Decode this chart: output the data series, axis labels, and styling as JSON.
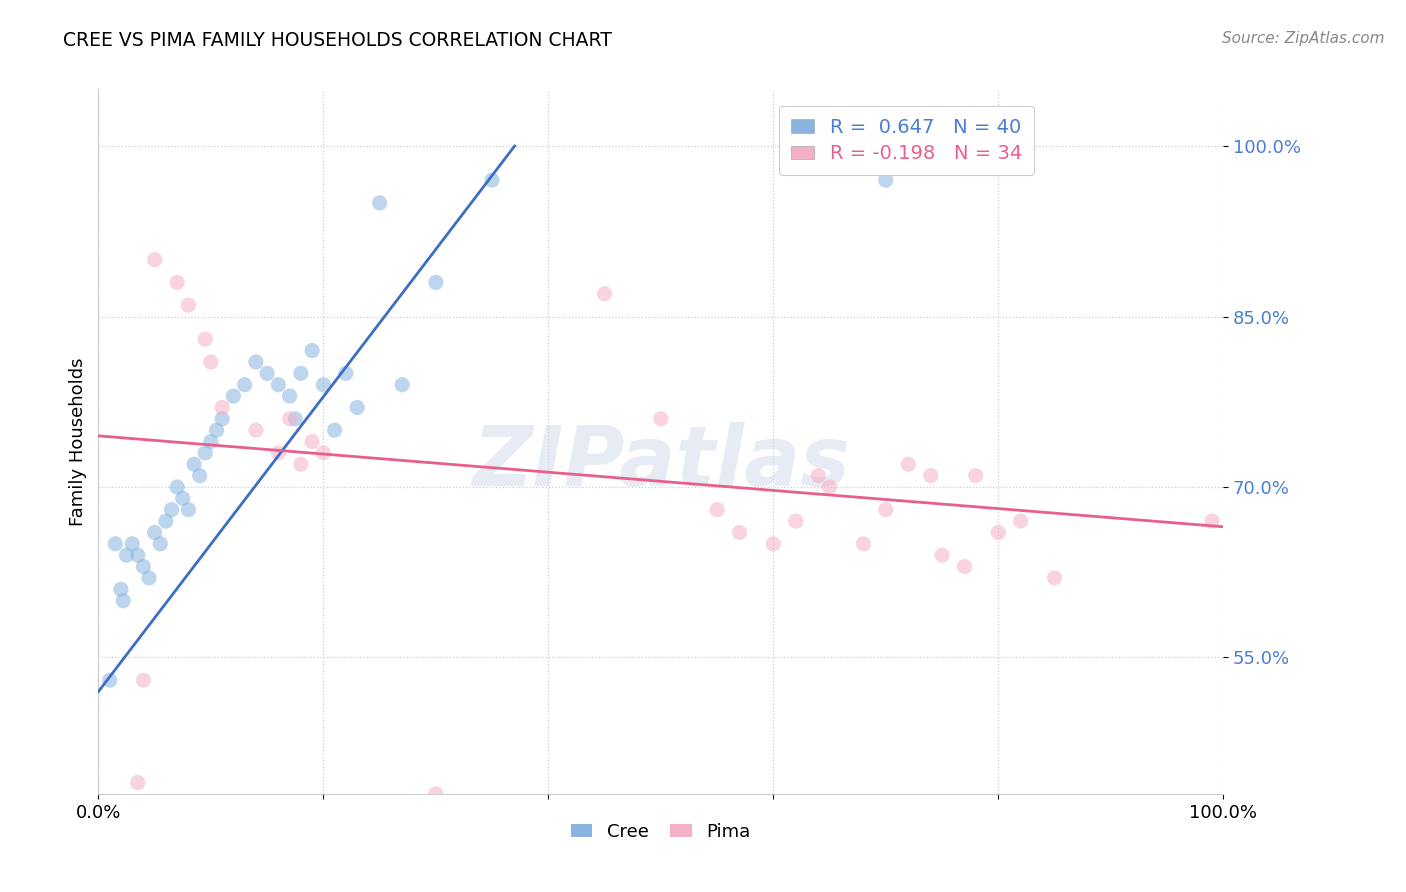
{
  "title": "CREE VS PIMA FAMILY HOUSEHOLDS CORRELATION CHART",
  "source": "Source: ZipAtlas.com",
  "ylabel": "Family Households",
  "xlim": [
    0,
    100
  ],
  "ylim": [
    43,
    105
  ],
  "yticks": [
    55,
    70,
    85,
    100
  ],
  "ytick_labels": [
    "55.0%",
    "70.0%",
    "85.0%",
    "100.0%"
  ],
  "cree_color": "#89b4e0",
  "pima_color": "#f5b0c5",
  "cree_line_color": "#3a6fc4",
  "pima_line_color": "#e8608a",
  "legend_cree_R": "0.647",
  "legend_cree_N": "40",
  "legend_pima_R": "-0.198",
  "legend_pima_N": "34",
  "watermark": "ZIPatlas",
  "cree_x": [
    1.0,
    1.5,
    2.0,
    2.5,
    3.0,
    3.5,
    4.0,
    4.5,
    5.0,
    5.5,
    6.0,
    6.5,
    7.0,
    7.5,
    8.0,
    8.5,
    9.0,
    9.5,
    10.0,
    10.5,
    11.0,
    12.0,
    13.0,
    14.0,
    15.0,
    16.0,
    17.0,
    17.5,
    18.0,
    19.0,
    20.0,
    21.0,
    22.0,
    23.0,
    25.0,
    27.0,
    30.0,
    35.0,
    70.0,
    2.2
  ],
  "cree_y": [
    53,
    65,
    61,
    64,
    65,
    64,
    63,
    62,
    66,
    65,
    67,
    68,
    70,
    69,
    68,
    72,
    71,
    73,
    74,
    75,
    76,
    78,
    79,
    81,
    80,
    79,
    78,
    76,
    80,
    82,
    79,
    75,
    80,
    77,
    95,
    79,
    88,
    97,
    97,
    60
  ],
  "pima_x": [
    3.5,
    4.0,
    5.0,
    7.0,
    8.0,
    9.5,
    10.0,
    11.0,
    14.0,
    16.0,
    17.0,
    18.0,
    19.0,
    20.0,
    30.0,
    45.0,
    50.0,
    55.0,
    57.0,
    60.0,
    62.0,
    64.0,
    65.0,
    68.0,
    70.0,
    72.0,
    74.0,
    75.0,
    77.0,
    78.0,
    80.0,
    82.0,
    85.0,
    99.0
  ],
  "pima_y": [
    44,
    53,
    90,
    88,
    86,
    83,
    81,
    77,
    75,
    73,
    76,
    72,
    74,
    73,
    43,
    87,
    76,
    68,
    66,
    65,
    67,
    71,
    70,
    65,
    68,
    72,
    71,
    64,
    63,
    71,
    66,
    67,
    62,
    67
  ],
  "cree_trendline_x": [
    0,
    37
  ],
  "cree_trendline_y": [
    52,
    100
  ],
  "pima_trendline_x": [
    0,
    100
  ],
  "pima_trendline_y": [
    74.5,
    66.5
  ],
  "background_color": "#ffffff",
  "grid_color": "#cccccc"
}
